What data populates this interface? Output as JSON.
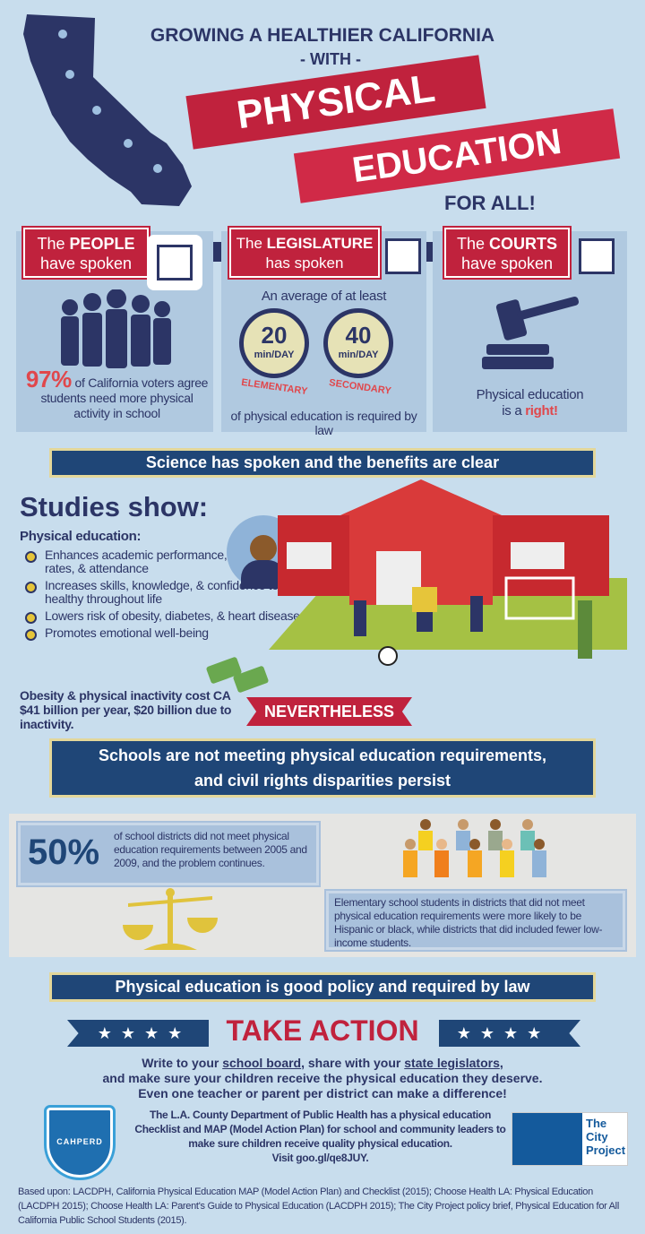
{
  "header": {
    "line1": "GROWING A HEALTHIER CALIFORNIA",
    "with": "- WITH -",
    "banner1": "PHYSICAL",
    "banner2": "EDUCATION",
    "line3": "FOR ALL!"
  },
  "panels": [
    {
      "label_pre": "The ",
      "label_bold": "PEOPLE",
      "label_line2": "have spoken",
      "stat": "97%",
      "text": "of California voters agree students need more physical activity in school"
    },
    {
      "label_pre": "The ",
      "label_bold": "LEGISLATURE",
      "label_line2": "has spoken",
      "intro": "An average of at least",
      "clocks": [
        {
          "value": "20",
          "unit": "min/DAY",
          "level": "ELEMENTARY"
        },
        {
          "value": "40",
          "unit": "min/DAY",
          "level": "SECONDARY"
        }
      ],
      "text": "of physical education is required by law"
    },
    {
      "label_pre": "The ",
      "label_bold": "COURTS",
      "label_line2": "have spoken",
      "text1": "Physical education",
      "text2": "is a ",
      "text_emph": "right!"
    }
  ],
  "science": {
    "banner": "Science has spoken and the benefits are clear",
    "heading": "Studies show:",
    "sub": "Physical education:",
    "bullets": [
      "Enhances academic performance, graduation rates, & attendance",
      "Increases skills, knowledge, & confidence to be healthy throughout life",
      "Lowers risk of obesity, diabetes, & heart disease",
      "Promotes emotional well-being"
    ],
    "cost": "Obesity & physical inactivity cost CA $41 billion per year, $20 billion due to inactivity."
  },
  "nevertheless": "NEVERTHELESS",
  "schools_banner": {
    "line1": "Schools are not meeting physical education requirements,",
    "line2": "and civil rights disparities persist"
  },
  "disparities": {
    "stat": "50%",
    "stat_text": "of school districts did not meet physical education requirements between 2005 and 2009, and the problem continues.",
    "text": "Elementary school students in districts that did not meet physical education requirements were more likely to be Hispanic or black, while districts that did included fewer low-income students."
  },
  "policy_banner": "Physical education is good policy and required by law",
  "action": {
    "title": "TAKE ACTION",
    "p1_a": "Write to your ",
    "p1_link1": "school board",
    "p1_b": ", share with your ",
    "p1_link2": "state legislators",
    "p1_c": ",",
    "p2": "and make sure your children receive the physical education they deserve.",
    "p3": "Even one teacher or parent per district can make a difference!"
  },
  "lacdph": {
    "text": "The L.A. County Department of Public Health has a physical education Checklist and MAP (Model Action Plan) for school and community leaders to make sure children receive quality physical education.",
    "visit": "Visit ",
    "url": "goo.gl/qe8JUY."
  },
  "logos": {
    "cahperd": "CAHPERD",
    "city_project": [
      "The",
      "City",
      "Project"
    ]
  },
  "footer": "Based upon: LACDPH, California Physical Education MAP (Model Action Plan) and Checklist (2015); Choose Health LA: Physical Education (LACDPH 2015); Choose Health LA: Parent's Guide to Physical Education (LACDPH 2015); The City Project policy brief, Physical Education for All California Public School Students (2015).",
  "colors": {
    "navy": "#2c3566",
    "red": "#c0223d",
    "banner_blue": "#1f4677",
    "gold": "#e3d79a",
    "background": "#c8dded"
  }
}
